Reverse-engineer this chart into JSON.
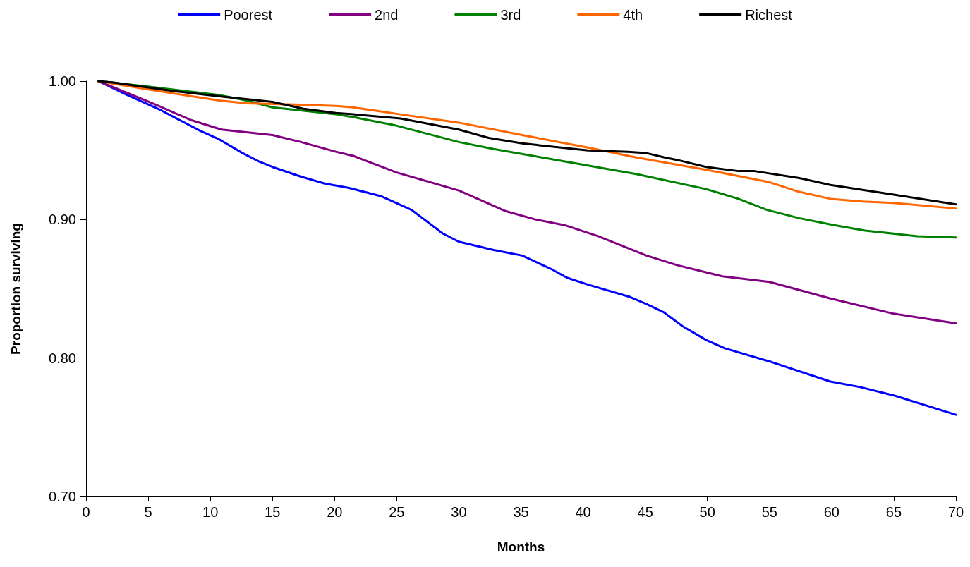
{
  "chart_data": {
    "type": "line",
    "xlabel": "Months",
    "ylabel": "Proportion surviving",
    "xlim": [
      0,
      70
    ],
    "ylim": [
      0.7,
      1.0
    ],
    "xticks": [
      0,
      5,
      10,
      15,
      20,
      25,
      30,
      35,
      40,
      45,
      50,
      55,
      60,
      65,
      70
    ],
    "yticks": [
      {
        "value": 0.7,
        "label": "0.70"
      },
      {
        "value": 0.8,
        "label": "0.80"
      },
      {
        "value": 0.9,
        "label": "0.90"
      },
      {
        "value": 1.0,
        "label": "1.00"
      }
    ],
    "grid": false,
    "legend": "top",
    "marker": "none",
    "line_style": "solid",
    "series": [
      {
        "name": "Poorest",
        "color": "#0000ff",
        "x": [
          1,
          3.3,
          5.8,
          9.2,
          10.7,
          12.6,
          13.9,
          15,
          17.3,
          19.2,
          21.1,
          23.7,
          26.2,
          28.7,
          30,
          32.8,
          35.1,
          37.5,
          38.7,
          40.4,
          43.8,
          45.1,
          46.5,
          48,
          49.9,
          51.4,
          55.2,
          59.9,
          62.3,
          65,
          70
        ],
        "values": [
          1.0,
          0.99,
          0.98,
          0.964,
          0.958,
          0.948,
          0.942,
          0.938,
          0.931,
          0.926,
          0.923,
          0.917,
          0.907,
          0.89,
          0.884,
          0.878,
          0.874,
          0.864,
          0.858,
          0.853,
          0.844,
          0.839,
          0.833,
          0.823,
          0.813,
          0.807,
          0.797,
          0.783,
          0.779,
          0.773,
          0.759
        ]
      },
      {
        "name": "2nd",
        "color": "#800080",
        "x": [
          1,
          5.6,
          8.4,
          10.9,
          15,
          17.3,
          20.1,
          21.5,
          25,
          30,
          33.8,
          36.2,
          38.5,
          41.2,
          45.1,
          47.6,
          51.2,
          55,
          59.9,
          65,
          70
        ],
        "values": [
          1.0,
          0.983,
          0.972,
          0.965,
          0.961,
          0.956,
          0.949,
          0.946,
          0.934,
          0.921,
          0.906,
          0.9,
          0.896,
          0.888,
          0.874,
          0.867,
          0.859,
          0.855,
          0.843,
          0.832,
          0.825
        ]
      },
      {
        "name": "3rd",
        "color": "#008000",
        "x": [
          1,
          5,
          10.7,
          12.9,
          15,
          17.1,
          20.1,
          21.5,
          24.9,
          30,
          32.8,
          36.6,
          40.4,
          42.3,
          44.2,
          49.9,
          52.5,
          54.8,
          57.4,
          60.2,
          62.7,
          66.9,
          70
        ],
        "values": [
          1.0,
          0.996,
          0.99,
          0.986,
          0.981,
          0.979,
          0.976,
          0.974,
          0.968,
          0.956,
          0.951,
          0.945,
          0.939,
          0.936,
          0.933,
          0.922,
          0.915,
          0.907,
          0.901,
          0.896,
          0.892,
          0.888,
          0.887
        ]
      },
      {
        "name": "4th",
        "color": "#ff6600",
        "x": [
          1,
          5,
          10.7,
          12.9,
          17.3,
          20.1,
          21.5,
          25.3,
          30,
          35.1,
          40.4,
          44.2,
          49.9,
          55,
          57.4,
          59.9,
          62.5,
          65,
          70
        ],
        "values": [
          1.0,
          0.994,
          0.986,
          0.984,
          0.983,
          0.982,
          0.981,
          0.976,
          0.97,
          0.961,
          0.952,
          0.945,
          0.936,
          0.927,
          0.92,
          0.915,
          0.913,
          0.912,
          0.908
        ]
      },
      {
        "name": "Richest",
        "color": "#000000",
        "x": [
          1,
          2.2,
          6.9,
          10.7,
          15,
          17.5,
          20.1,
          21.5,
          25.3,
          30,
          32.4,
          35.1,
          40.4,
          43.6,
          45.1,
          46.5,
          47.6,
          49.9,
          52.5,
          53.8,
          57.4,
          59.9,
          65,
          70
        ],
        "values": [
          1.0,
          0.999,
          0.993,
          0.989,
          0.985,
          0.98,
          0.977,
          0.976,
          0.973,
          0.965,
          0.959,
          0.955,
          0.95,
          0.949,
          0.948,
          0.945,
          0.943,
          0.938,
          0.935,
          0.935,
          0.93,
          0.925,
          0.918,
          0.911
        ]
      }
    ]
  }
}
